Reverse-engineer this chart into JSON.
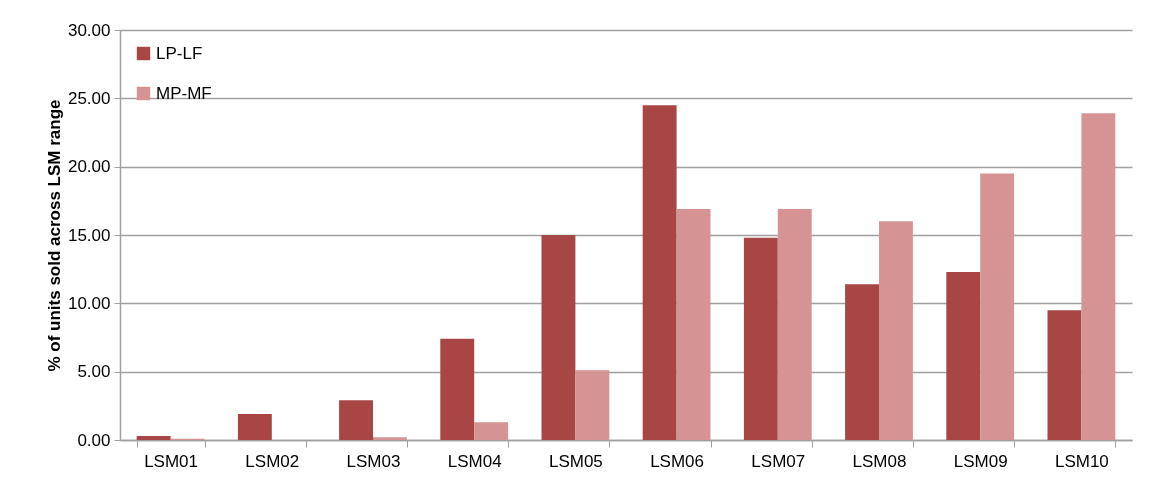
{
  "chart_data": {
    "type": "bar",
    "ylabel": "% of units sold across LSM range",
    "categories": [
      "LSM01",
      "LSM02",
      "LSM03",
      "LSM04",
      "LSM05",
      "LSM06",
      "LSM07",
      "LSM08",
      "LSM09",
      "LSM10"
    ],
    "series": [
      {
        "name": "LP-LF",
        "color": "#a84646",
        "values": [
          0.3,
          1.9,
          2.9,
          7.4,
          15.0,
          24.5,
          14.8,
          11.4,
          12.3,
          9.5
        ]
      },
      {
        "name": "MP-MF",
        "color": "#d59393",
        "values": [
          0.1,
          0,
          0.2,
          1.3,
          5.1,
          16.9,
          16.9,
          16.0,
          19.5,
          23.9
        ]
      }
    ],
    "ylim": [
      0,
      30
    ],
    "yticks": [
      {
        "value": 0,
        "label": "0.00"
      },
      {
        "value": 5,
        "label": "5.00"
      },
      {
        "value": 10,
        "label": "10.00"
      },
      {
        "value": 15,
        "label": "15.00"
      },
      {
        "value": 20,
        "label": "20.00"
      },
      {
        "value": 25,
        "label": "25.00"
      },
      {
        "value": 30,
        "label": "30.00"
      }
    ],
    "grid": "y",
    "legend": "top left"
  }
}
